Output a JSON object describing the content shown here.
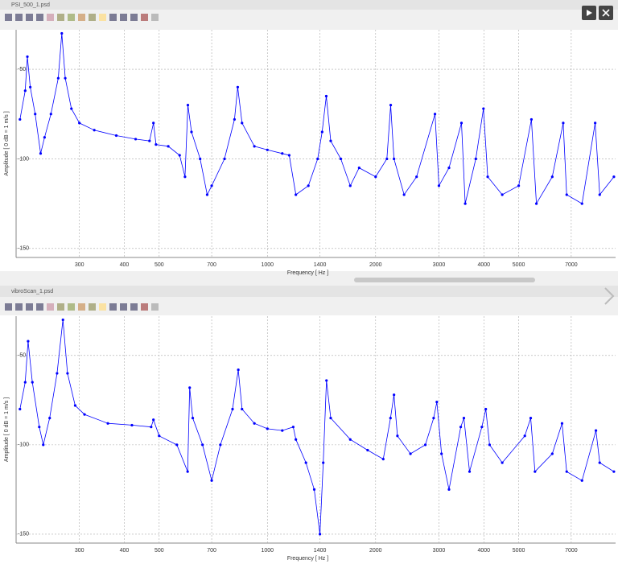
{
  "windows": [
    {
      "filename": "PSI_500_1.psd"
    },
    {
      "filename": "vibroScan_1.psd"
    }
  ],
  "chart_data": [
    {
      "type": "line",
      "xscale": "log",
      "grid": true,
      "color": "#0000ff",
      "xlabel": "Frequency [ Hz ]",
      "ylabel": "Amplitude [ 0 dB = 1 m/s ]",
      "xlim": [
        200,
        9300
      ],
      "ylim": [
        -155,
        -28
      ],
      "xticks": [
        300,
        400,
        500,
        700,
        1000,
        1400,
        2000,
        3000,
        4000,
        5000,
        7000
      ],
      "yticks": [
        -50,
        -100,
        -150
      ],
      "x": [
        205,
        212,
        215,
        219,
        226,
        234,
        240,
        250,
        262,
        268,
        274,
        285,
        300,
        330,
        380,
        430,
        470,
        482,
        490,
        530,
        570,
        590,
        601,
        615,
        650,
        680,
        700,
        760,
        810,
        827,
        850,
        920,
        1000,
        1100,
        1150,
        1200,
        1300,
        1380,
        1420,
        1458,
        1500,
        1600,
        1700,
        1800,
        2000,
        2150,
        2203,
        2250,
        2400,
        2600,
        2925,
        3000,
        3200,
        3466,
        3550,
        3800,
        3990,
        4100,
        4500,
        5000,
        5425,
        5600,
        6200,
        6650,
        6800,
        7500,
        8160,
        8400,
        9200
      ],
      "values": [
        -78,
        -62,
        -43,
        -60,
        -75,
        -97,
        -88,
        -75,
        -55,
        -30,
        -55,
        -72,
        -80,
        -84,
        -87,
        -89,
        -90,
        -80,
        -92,
        -93,
        -98,
        -110,
        -70,
        -85,
        -100,
        -120,
        -115,
        -100,
        -78,
        -60,
        -80,
        -93,
        -95,
        -97,
        -98,
        -120,
        -115,
        -100,
        -85,
        -65,
        -90,
        -100,
        -115,
        -105,
        -110,
        -100,
        -70,
        -100,
        -120,
        -110,
        -75,
        -115,
        -105,
        -80,
        -125,
        -100,
        -72,
        -110,
        -120,
        -115,
        -78,
        -125,
        -110,
        -80,
        -120,
        -125,
        -80,
        -120,
        -110
      ]
    },
    {
      "type": "line",
      "xscale": "log",
      "grid": true,
      "color": "#0000ff",
      "xlabel": "Frequency [ Hz ]",
      "ylabel": "Amplitude [ 0 dB = 1 m/s ]",
      "xlim": [
        200,
        9300
      ],
      "ylim": [
        -155,
        -28
      ],
      "xticks": [
        300,
        400,
        500,
        700,
        1000,
        1400,
        2000,
        3000,
        4000,
        5000,
        7000
      ],
      "yticks": [
        -50,
        -100,
        -150
      ],
      "x": [
        205,
        212,
        216,
        222,
        232,
        238,
        248,
        260,
        270,
        278,
        292,
        310,
        360,
        420,
        475,
        482,
        500,
        560,
        600,
        608,
        620,
        660,
        700,
        740,
        800,
        830,
        850,
        920,
        1000,
        1100,
        1180,
        1200,
        1280,
        1350,
        1400,
        1430,
        1460,
        1500,
        1700,
        1900,
        2100,
        2200,
        2250,
        2300,
        2500,
        2750,
        2900,
        2960,
        3050,
        3200,
        3450,
        3520,
        3650,
        3950,
        4050,
        4150,
        4500,
        5200,
        5400,
        5550,
        6200,
        6600,
        6800,
        7500,
        8200,
        8400,
        9200
      ],
      "values": [
        -80,
        -65,
        -42,
        -65,
        -90,
        -100,
        -85,
        -60,
        -30,
        -60,
        -78,
        -83,
        -88,
        -89,
        -90,
        -86,
        -95,
        -100,
        -115,
        -68,
        -85,
        -100,
        -120,
        -100,
        -80,
        -58,
        -80,
        -88,
        -91,
        -92,
        -90,
        -97,
        -110,
        -125,
        -150,
        -110,
        -64,
        -85,
        -97,
        -103,
        -108,
        -85,
        -72,
        -95,
        -105,
        -100,
        -85,
        -76,
        -105,
        -125,
        -90,
        -85,
        -115,
        -90,
        -80,
        -100,
        -110,
        -95,
        -85,
        -115,
        -105,
        -88,
        -115,
        -120,
        -92,
        -110,
        -115
      ]
    }
  ]
}
